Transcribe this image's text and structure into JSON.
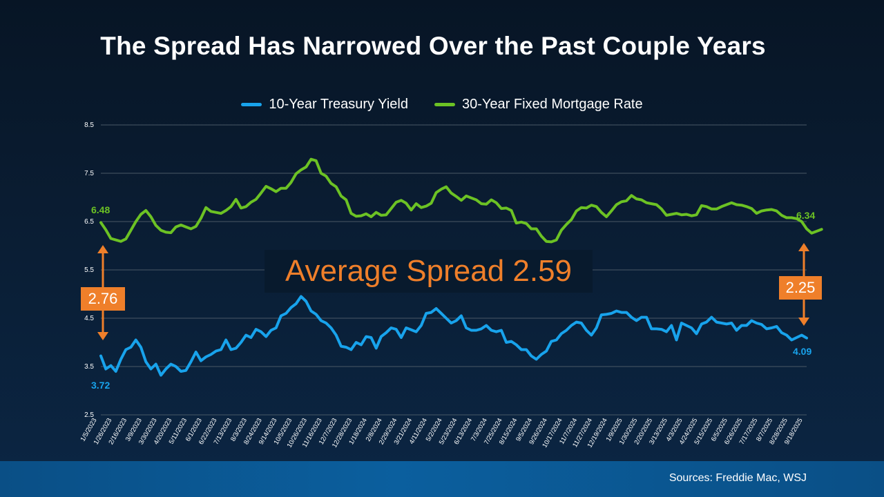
{
  "title": "The Spread Has Narrowed Over the Past Couple Years",
  "source": "Sources: Freddie Mac, WSJ",
  "average_spread_label": "Average Spread 2.59",
  "callouts": {
    "start_spread": "2.76",
    "end_spread": "2.25",
    "mortgage_start": "6.48",
    "mortgage_end": "6.34",
    "treasury_start": "3.72",
    "treasury_end": "4.09"
  },
  "colors": {
    "treasury": "#18a3ec",
    "mortgage": "#6cc224",
    "accent": "#ef7f2a",
    "background": "#071525"
  },
  "chart_data": {
    "type": "line",
    "title": "The Spread Has Narrowed Over the Past Couple Years",
    "ylim": [
      2.5,
      8.5
    ],
    "yticks": [
      "8.5",
      "7.5",
      "6.5",
      "5.5",
      "4.5",
      "3.5",
      "2.5"
    ],
    "grid": true,
    "legend_position": "top-center",
    "x_tick_labels": [
      "1/5/2023",
      "1/26/2023",
      "2/16/2023",
      "3/9/2023",
      "3/30/2023",
      "4/20/2023",
      "5/11/2023",
      "6/1/2023",
      "6/22/2023",
      "7/13/2023",
      "8/3/2023",
      "8/24/2023",
      "9/14/2023",
      "10/5/2023",
      "10/26/2023",
      "11/16/2023",
      "12/7/2023",
      "12/28/2023",
      "1/18/2024",
      "2/8/2024",
      "2/29/2024",
      "3/21/2024",
      "4/11/2024",
      "5/2/2024",
      "5/23/2024",
      "6/13/2024",
      "7/3/2024",
      "7/25/2024",
      "8/15/2024",
      "9/5/2024",
      "9/26/2024",
      "10/17/2024",
      "11/7/2024",
      "11/27/2024",
      "12/19/2024",
      "1/9/2025",
      "1/30/2025",
      "2/20/2025",
      "3/13/2025",
      "4/3/2025",
      "4/24/2025",
      "5/15/2025",
      "6/5/2025",
      "6/26/2025",
      "7/17/2025",
      "8/7/2025",
      "8/28/2025",
      "9/18/2025"
    ],
    "series": [
      {
        "name": "10-Year Treasury Yield",
        "values": [
          3.72,
          3.45,
          3.52,
          3.4,
          3.65,
          3.85,
          3.9,
          4.05,
          3.9,
          3.6,
          3.45,
          3.55,
          3.32,
          3.45,
          3.55,
          3.5,
          3.4,
          3.42,
          3.6,
          3.8,
          3.62,
          3.7,
          3.75,
          3.82,
          3.85,
          4.05,
          3.85,
          3.88,
          4.0,
          4.15,
          4.1,
          4.27,
          4.22,
          4.12,
          4.25,
          4.3,
          4.55,
          4.6,
          4.72,
          4.8,
          4.95,
          4.85,
          4.65,
          4.58,
          4.45,
          4.4,
          4.3,
          4.15,
          3.92,
          3.9,
          3.85,
          4.0,
          3.95,
          4.12,
          4.1,
          3.88,
          4.12,
          4.2,
          4.3,
          4.27,
          4.1,
          4.3,
          4.26,
          4.22,
          4.35,
          4.6,
          4.62,
          4.7,
          4.6,
          4.5,
          4.4,
          4.45,
          4.55,
          4.3,
          4.25,
          4.25,
          4.28,
          4.35,
          4.25,
          4.22,
          4.25,
          4.0,
          4.02,
          3.95,
          3.85,
          3.85,
          3.72,
          3.65,
          3.75,
          3.82,
          4.02,
          4.05,
          4.18,
          4.25,
          4.35,
          4.42,
          4.4,
          4.25,
          4.15,
          4.3,
          4.57,
          4.58,
          4.6,
          4.65,
          4.62,
          4.62,
          4.52,
          4.45,
          4.52,
          4.52,
          4.28,
          4.28,
          4.27,
          4.22,
          4.35,
          4.05,
          4.4,
          4.35,
          4.3,
          4.18,
          4.38,
          4.42,
          4.52,
          4.42,
          4.4,
          4.38,
          4.4,
          4.25,
          4.35,
          4.35,
          4.45,
          4.4,
          4.37,
          4.28,
          4.3,
          4.33,
          4.2,
          4.15,
          4.05,
          4.1,
          4.15,
          4.09
        ]
      },
      {
        "name": "30-Year Fixed Mortgage Rate",
        "values": [
          6.48,
          6.33,
          6.15,
          6.12,
          6.09,
          6.14,
          6.32,
          6.5,
          6.65,
          6.73,
          6.6,
          6.42,
          6.32,
          6.28,
          6.27,
          6.39,
          6.43,
          6.39,
          6.35,
          6.4,
          6.57,
          6.79,
          6.71,
          6.69,
          6.67,
          6.73,
          6.81,
          6.96,
          6.78,
          6.81,
          6.9,
          6.96,
          7.09,
          7.23,
          7.18,
          7.12,
          7.19,
          7.19,
          7.31,
          7.49,
          7.57,
          7.63,
          7.79,
          7.76,
          7.5,
          7.44,
          7.29,
          7.22,
          7.03,
          6.95,
          6.67,
          6.61,
          6.62,
          6.66,
          6.6,
          6.69,
          6.63,
          6.64,
          6.77,
          6.9,
          6.94,
          6.88,
          6.74,
          6.87,
          6.79,
          6.82,
          6.88,
          7.1,
          7.17,
          7.22,
          7.09,
          7.02,
          6.94,
          7.03,
          6.99,
          6.95,
          6.87,
          6.86,
          6.95,
          6.89,
          6.77,
          6.78,
          6.73,
          6.47,
          6.49,
          6.46,
          6.35,
          6.35,
          6.2,
          6.09,
          6.08,
          6.12,
          6.32,
          6.44,
          6.54,
          6.72,
          6.79,
          6.78,
          6.84,
          6.81,
          6.69,
          6.6,
          6.72,
          6.85,
          6.91,
          6.93,
          7.04,
          6.97,
          6.95,
          6.89,
          6.87,
          6.85,
          6.76,
          6.63,
          6.65,
          6.67,
          6.64,
          6.65,
          6.62,
          6.64,
          6.83,
          6.81,
          6.76,
          6.76,
          6.81,
          6.85,
          6.89,
          6.85,
          6.84,
          6.81,
          6.77,
          6.67,
          6.72,
          6.74,
          6.75,
          6.72,
          6.63,
          6.58,
          6.58,
          6.56,
          6.5,
          6.35,
          6.26,
          6.3,
          6.34
        ]
      }
    ]
  }
}
